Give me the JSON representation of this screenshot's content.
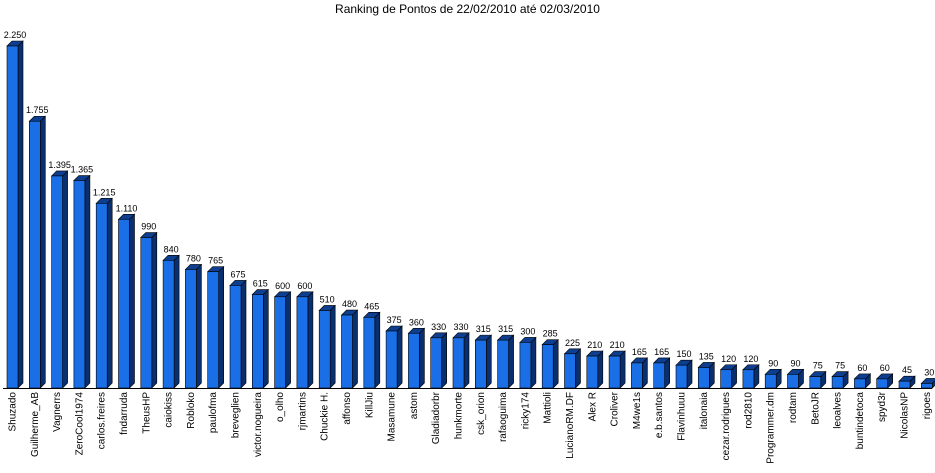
{
  "chart_data": {
    "type": "bar",
    "title": "Ranking de Pontos de 22/02/2010 até 02/03/2010",
    "xlabel": "",
    "ylabel": "",
    "ylim": [
      0,
      2250
    ],
    "grid": false,
    "bar_color": "#1a6fe6",
    "categories": [
      "Shuzado",
      "Guilherme_AB",
      "Vagnerrs",
      "ZeroCool1974",
      "carlos.freires",
      "fndarruda",
      "TheusHP",
      "caiokiss",
      "Robloko",
      "paulofma",
      "breveglien",
      "victor.nogueira",
      "o_olho",
      "rjmartins",
      "Chuckie H.",
      "affonso",
      "KillJiu",
      "Masamune",
      "astom",
      "Gladiadorbr",
      "hunkmorte",
      "csk_orion",
      "rafaoguima",
      "ricky174",
      "Mattioli",
      "LucianoRM.DF",
      "Alex R",
      "Croliver",
      "M4we1s",
      "e.b.santos",
      "Flavinhuuu",
      "italonaia",
      "cezar.rodrigues",
      "rod2810",
      "Programmer.dm",
      "rodtam",
      "BetoJR",
      "leoalves",
      "buntindetoca",
      "spyd3r",
      "NicolasNP",
      "rigoes"
    ],
    "value_labels": [
      "2.250",
      "1.755",
      "1.395",
      "1.365",
      "1.215",
      "1.110",
      "990",
      "840",
      "780",
      "765",
      "675",
      "615",
      "600",
      "600",
      "510",
      "480",
      "465",
      "375",
      "360",
      "330",
      "330",
      "315",
      "315",
      "300",
      "285",
      "225",
      "210",
      "210",
      "165",
      "165",
      "150",
      "135",
      "120",
      "120",
      "90",
      "90",
      "75",
      "75",
      "60",
      "60",
      "45",
      "30"
    ],
    "values": [
      2250,
      1755,
      1395,
      1365,
      1215,
      1110,
      990,
      840,
      780,
      765,
      675,
      615,
      600,
      600,
      510,
      480,
      465,
      375,
      360,
      330,
      330,
      315,
      315,
      300,
      285,
      225,
      210,
      210,
      165,
      165,
      150,
      135,
      120,
      120,
      90,
      90,
      75,
      75,
      60,
      60,
      45,
      30
    ]
  }
}
